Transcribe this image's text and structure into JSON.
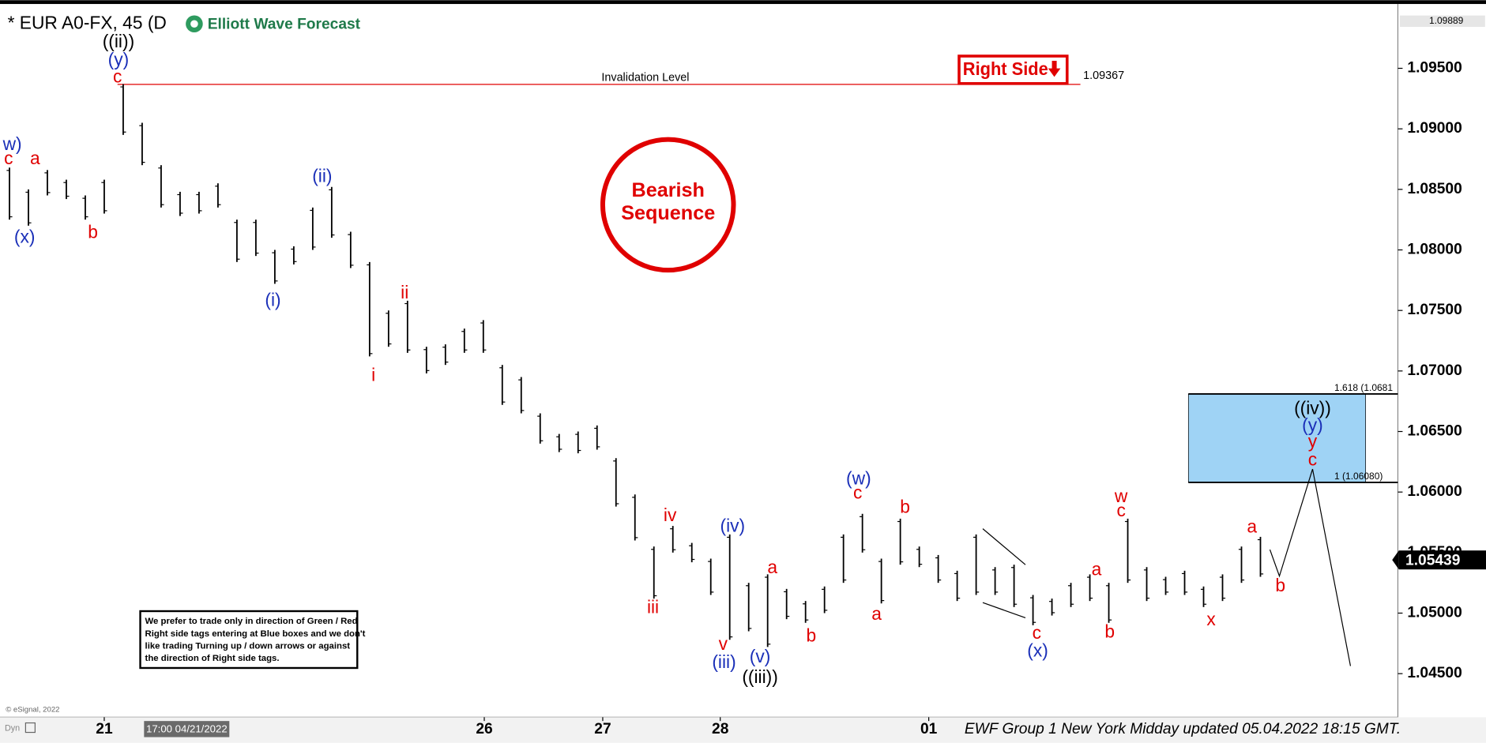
{
  "chart_data": {
    "type": "range_bar",
    "title": "* EUR A0-FX, 45 (D",
    "brand": "Elliott Wave Forecast",
    "footer": "EWF Group 1 New York Midday updated 05.04.2022 18:15 GMT.",
    "cursor_time": "17:00 04/21/2022",
    "copyright": "© eSignal, 2022",
    "corner_label": "Dyn",
    "bar_color": "#000000",
    "high": [
      1.0868,
      1.085,
      1.0866,
      1.0858,
      1.0845,
      1.0858,
      1.0937,
      1.0905,
      1.087,
      1.0848,
      1.0848,
      1.0855,
      1.0825,
      1.0825,
      1.08,
      1.0803,
      1.0835,
      1.0852,
      1.0815,
      1.079,
      1.075,
      1.0758,
      1.072,
      1.0722,
      1.0735,
      1.0742,
      1.0705,
      1.0695,
      1.0665,
      1.0648,
      1.065,
      1.0655,
      1.0628,
      1.0598,
      1.0555,
      1.0572,
      1.0558,
      1.0545,
      1.0565,
      1.0525,
      1.0532,
      1.052,
      1.051,
      1.0522,
      1.0565,
      1.0582,
      1.0545,
      1.0578,
      1.0555,
      1.0548,
      1.0535,
      1.0565,
      1.0538,
      1.054,
      1.0515,
      1.0512,
      1.0525,
      1.0532,
      1.0525,
      1.0578,
      1.0538,
      1.053,
      1.0535,
      1.0522,
      1.0532,
      1.0555,
      1.0563
    ],
    "low": [
      1.0825,
      1.082,
      1.0845,
      1.0842,
      1.0825,
      1.083,
      1.0895,
      1.087,
      1.0835,
      1.0828,
      1.083,
      1.0835,
      1.079,
      1.0795,
      1.0772,
      1.0788,
      1.08,
      1.081,
      1.0785,
      1.0712,
      1.072,
      1.0715,
      1.0698,
      1.0705,
      1.0715,
      1.0715,
      1.0672,
      1.0665,
      1.064,
      1.0633,
      1.0632,
      1.0635,
      1.0588,
      1.056,
      1.0512,
      1.055,
      1.0542,
      1.0515,
      1.0478,
      1.0485,
      1.0472,
      1.0495,
      1.0492,
      1.05,
      1.0525,
      1.055,
      1.0508,
      1.054,
      1.0538,
      1.0525,
      1.051,
      1.0515,
      1.0515,
      1.0505,
      1.049,
      1.0498,
      1.0505,
      1.051,
      1.0492,
      1.0525,
      1.051,
      1.0515,
      1.0515,
      1.0505,
      1.051,
      1.0525,
      1.053
    ],
    "xlim": [
      -0.5,
      73.25
    ],
    "xticks": [
      {
        "value": 5,
        "label": "21"
      },
      {
        "value": 25.05,
        "label": "26"
      },
      {
        "value": 31.3,
        "label": "27"
      },
      {
        "value": 37.5,
        "label": "28"
      },
      {
        "value": 48.5,
        "label": "01"
      }
    ],
    "ylim": [
      1.0414,
      1.1
    ],
    "yticks": [
      {
        "value": 1.045,
        "label": "1.04500"
      },
      {
        "value": 1.05,
        "label": "1.05000"
      },
      {
        "value": 1.055,
        "label": "1.05500"
      },
      {
        "value": 1.06,
        "label": "1.06000"
      },
      {
        "value": 1.065,
        "label": "1.06500"
      },
      {
        "value": 1.07,
        "label": "1.07000"
      },
      {
        "value": 1.075,
        "label": "1.07500"
      },
      {
        "value": 1.08,
        "label": "1.08000"
      },
      {
        "value": 1.085,
        "label": "1.08500"
      },
      {
        "value": 1.09,
        "label": "1.09000"
      },
      {
        "value": 1.095,
        "label": "1.09500"
      }
    ],
    "top_price": {
      "value": 1.09889,
      "label": "1.09889"
    },
    "last_price": {
      "value": 1.05439,
      "label": "1.05439"
    },
    "invalidation": {
      "text": "Invalidation Level",
      "value": 1.09367,
      "label": "1.09367",
      "color": "#e00000"
    },
    "target_zone": {
      "low": 1.0608,
      "high": 1.0681,
      "low_label": "1 (1.06080)",
      "high_label": "1.618 (1.0681",
      "color": "#9fd3f5"
    },
    "projection": {
      "x": [
        66.5,
        67,
        68.75,
        70.75
      ],
      "values": [
        1.05525,
        1.05306,
        1.0619,
        1.04563
      ]
    },
    "right_side_tag": "Right Side",
    "circle_text": [
      "Bearish",
      "Sequence"
    ],
    "notice": [
      "We prefer to trade only in direction of Green / Red",
      "Right side tags entering at Blue boxes and we don't",
      "like trading Turning up / down arrows or against",
      "the direction of Right side tags."
    ],
    "wave_colors": {
      "red": "#e00000",
      "blue": "#1a2fb8",
      "black": "#000000"
    },
    "wave_labels": [
      {
        "text": "((ii))",
        "color": "black"
      },
      {
        "text": "(y)",
        "color": "blue"
      },
      {
        "text": "c",
        "color": "red"
      },
      {
        "text": "w)",
        "color": "blue"
      },
      {
        "text": "c",
        "color": "red"
      },
      {
        "text": "a",
        "color": "red"
      },
      {
        "text": "(x)",
        "color": "blue"
      },
      {
        "text": "b",
        "color": "red"
      },
      {
        "text": "(ii)",
        "color": "blue"
      },
      {
        "text": "(i)",
        "color": "blue"
      },
      {
        "text": "ii",
        "color": "red"
      },
      {
        "text": "i",
        "color": "red"
      },
      {
        "text": "iv",
        "color": "red"
      },
      {
        "text": "iii",
        "color": "red"
      },
      {
        "text": "(iv)",
        "color": "blue"
      },
      {
        "text": "v",
        "color": "red"
      },
      {
        "text": "(iii)",
        "color": "blue"
      },
      {
        "text": "(v)",
        "color": "blue"
      },
      {
        "text": "((iii))",
        "color": "black"
      },
      {
        "text": "a",
        "color": "red"
      },
      {
        "text": "b",
        "color": "red"
      },
      {
        "text": "(w)",
        "color": "blue"
      },
      {
        "text": "c",
        "color": "red"
      },
      {
        "text": "a",
        "color": "red"
      },
      {
        "text": "b",
        "color": "red"
      },
      {
        "text": "c",
        "color": "red"
      },
      {
        "text": "(x)",
        "color": "blue"
      },
      {
        "text": "a",
        "color": "red"
      },
      {
        "text": "b",
        "color": "red"
      },
      {
        "text": "w",
        "color": "red"
      },
      {
        "text": "c",
        "color": "red"
      },
      {
        "text": "x",
        "color": "red"
      },
      {
        "text": "a",
        "color": "red"
      },
      {
        "text": "b",
        "color": "red"
      },
      {
        "text": "((iv))",
        "color": "black"
      },
      {
        "text": "(y)",
        "color": "blue"
      },
      {
        "text": "y",
        "color": "red"
      },
      {
        "text": "c",
        "color": "red"
      }
    ]
  }
}
